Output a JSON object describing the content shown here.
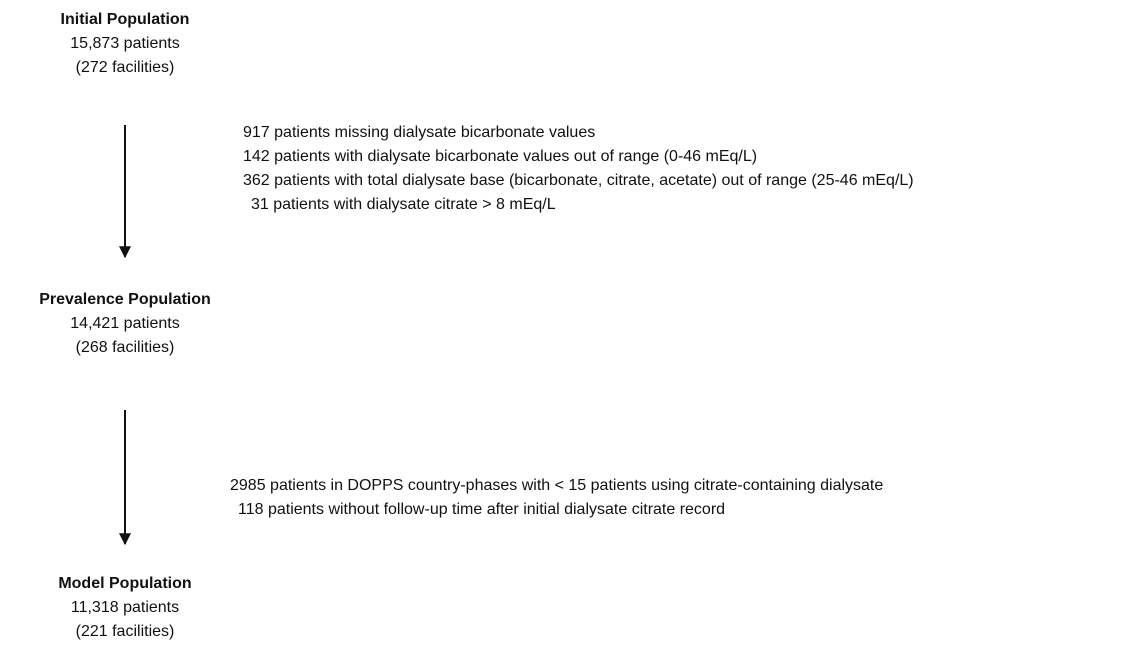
{
  "nodes": [
    {
      "title": "Initial Population",
      "patients": "15,873 patients",
      "facilities": "(272 facilities)"
    },
    {
      "title": "Prevalence Population",
      "patients": "14,421 patients",
      "facilities": "(268 facilities)"
    },
    {
      "title": "Model Population",
      "patients": "11,318 patients",
      "facilities": "(221 facilities)"
    }
  ],
  "exclusions": [
    [
      "917 patients missing dialysate bicarbonate values",
      "142 patients with dialysate bicarbonate values out of range (0-46 mEq/L)",
      "362 patients with total dialysate base (bicarbonate, citrate, acetate) out of range (25-46 mEq/L)",
      "31 patients with dialysate citrate > 8 mEq/L"
    ],
    [
      "2985 patients in DOPPS country-phases with < 15 patients using citrate-containing dialysate",
      "118 patients without follow-up time after initial dialysate citrate record"
    ]
  ]
}
